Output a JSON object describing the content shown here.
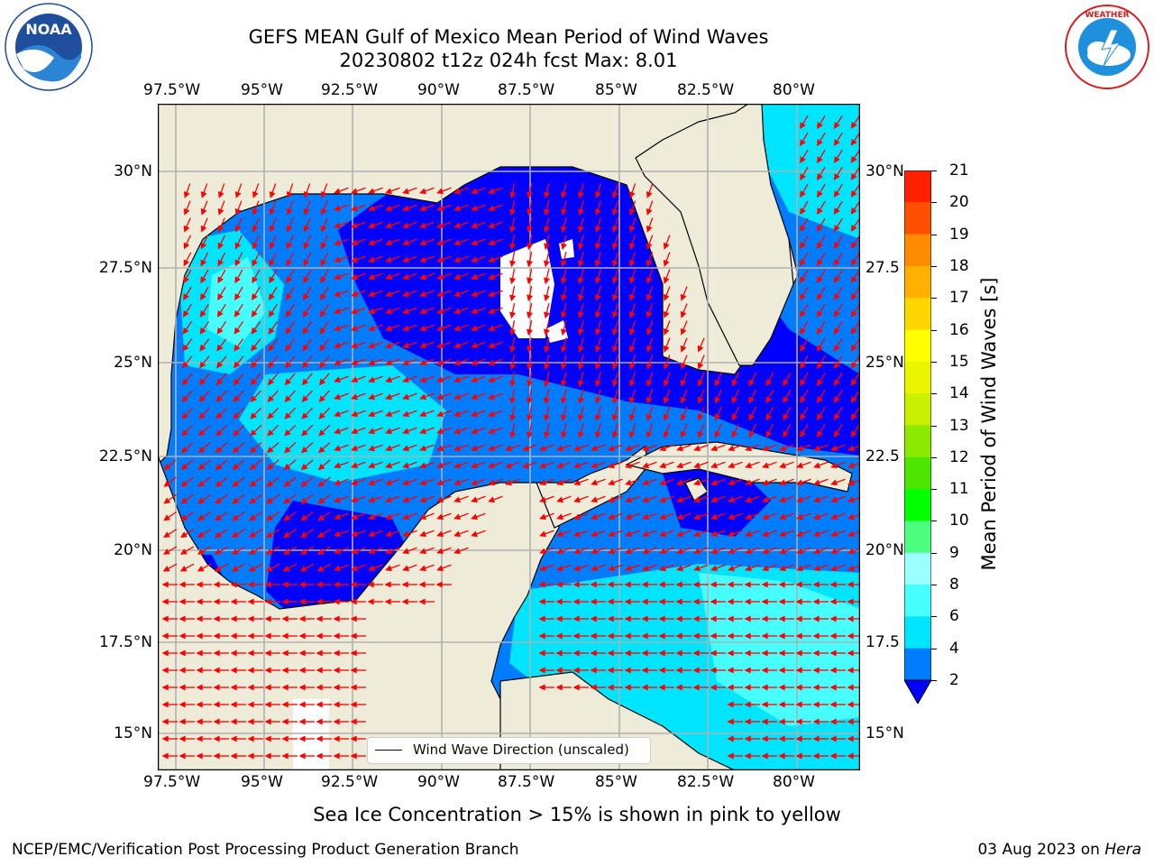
{
  "header": {
    "title_line1": "GEFS MEAN Gulf of Mexico Mean Period of Wind Waves",
    "title_line2": "20230802 t12z 024h fcst   Max: 8.01"
  },
  "logos": {
    "left": {
      "text": "NOAA",
      "ring_text": "NATIONAL OCEANIC AND ATMOSPHERIC ADMINISTRATION · U.S. DEPARTMENT OF COMMERCE"
    },
    "right": {
      "ring_text": "NATIONAL WEATHER SERVICE"
    }
  },
  "map": {
    "lon_labels": [
      "97.5°W",
      "95°W",
      "92.5°W",
      "90°W",
      "87.5°W",
      "85°W",
      "82.5°W",
      "80°W"
    ],
    "lat_labels_left": [
      "30°N",
      "27.5°N",
      "25°N",
      "22.5°N",
      "20°N",
      "17.5°N",
      "15°N"
    ],
    "lat_labels_right": [
      "30°N",
      "27.5",
      "25°N",
      "22.5",
      "20°N",
      "17.5",
      "15°N"
    ],
    "legend_label": "Wind Wave Direction (unscaled)"
  },
  "colorbar": {
    "label": "Mean Period of Wind Waves [s]",
    "ticks": [
      "2",
      "4",
      "6",
      "8",
      "9",
      "10",
      "11",
      "12",
      "13",
      "14",
      "15",
      "16",
      "17",
      "18",
      "19",
      "20",
      "21"
    ],
    "colors": [
      "#0000ff",
      "#007dff",
      "#00e5ff",
      "#47ffff",
      "#9cffff",
      "#4dff7f",
      "#00ff00",
      "#4de600",
      "#8cea00",
      "#c8f000",
      "#ecf500",
      "#ffff00",
      "#ffd700",
      "#ffb000",
      "#ff8c00",
      "#ff5000",
      "#ff2000",
      "#ff0000"
    ]
  },
  "note": "Sea Ice Concentration > 15% is shown in pink to yellow",
  "footer": {
    "left": "NCEP/EMC/Verification Post Processing Product Generation Branch",
    "date": "03 Aug 2023 on ",
    "machine": "Hera"
  }
}
